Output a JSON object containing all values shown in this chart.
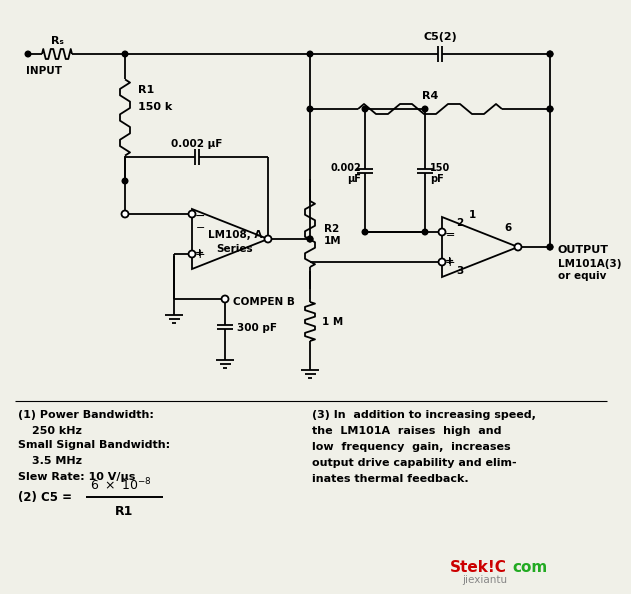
{
  "background_color": "#f0f0e8",
  "circuit": {
    "input_label": "INPUT",
    "output_label": "OUTPUT",
    "rs_label": "Rₛ",
    "r1_label": "R1",
    "r1_val": "150 k",
    "cap1_label": "0.002 μF",
    "lm108_label": "LM108, A\nSeries",
    "r2_label": "R2",
    "r2_val": "1M",
    "compen_label": "COMPEN B",
    "cap_compen_label": "300 pF",
    "r3_val": "1 M",
    "c5_label": "C5(2)",
    "r4_label": "R4",
    "cap2_label": "0.002\nμF",
    "cap3_label": "150\npF",
    "lm101_label": "LM101A(3)\nor equiv",
    "pin1_label": "1",
    "pin2_label": "2",
    "pin3_label": "3",
    "pin6_label": "6"
  },
  "annotations": {
    "note1_title": "(1) Power Bandwidth:",
    "note1_line1": "250 kHz",
    "note1_line2": "Small Signal Bandwidth:",
    "note1_line3": "3.5 MHz",
    "note1_line4": "Slew Rate: 10 V/μs",
    "note3_title": "(3) In  addition to increasing speed,",
    "note3_line1": "the  LM101A  raises  high  and",
    "note3_line2": "low  frequency  gain,  increases",
    "note3_line3": "output drive capability and elim-",
    "note3_line4": "inates thermal feedback."
  },
  "watermark_red": "Stek!C",
  "watermark_green": "com",
  "watermark_sub": "jiexiantu"
}
